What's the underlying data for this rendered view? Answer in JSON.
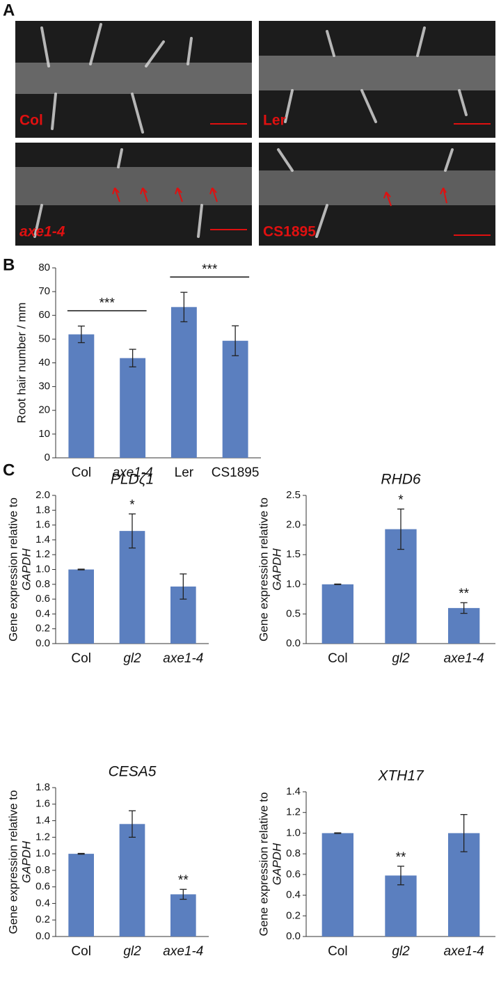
{
  "panel_labels": [
    "A",
    "B",
    "C"
  ],
  "micrographs": {
    "labels": [
      "Col",
      "Ler",
      "axe1-4",
      "CS1895"
    ]
  },
  "chart_data": [
    {
      "type": "bar",
      "ylabel": "Root hair number / mm",
      "categories": [
        "Col",
        "axe1-4",
        "Ler",
        "CS1895"
      ],
      "italic": [
        false,
        true,
        false,
        false
      ],
      "values": [
        52,
        42,
        63.5,
        49.3
      ],
      "errors": [
        3.5,
        3.7,
        6.2,
        6.3
      ],
      "color": "#5b7fbf",
      "ylim": [
        0,
        80
      ],
      "yticks": [
        0,
        10,
        20,
        30,
        40,
        50,
        60,
        70,
        80
      ],
      "brackets": [
        "***",
        "***"
      ]
    },
    {
      "type": "bar",
      "title": "PLDζ1",
      "ylabel": "Gene expression relative to",
      "ylabel_italic": "GAPDH",
      "categories": [
        "Col",
        "gl2",
        "axe1-4"
      ],
      "italic": [
        false,
        true,
        true
      ],
      "values": [
        1.0,
        1.52,
        0.77
      ],
      "errors": [
        0.005,
        0.23,
        0.17
      ],
      "stars": [
        null,
        "*",
        null
      ],
      "color": "#5b7fbf",
      "ylim": [
        0,
        2.0
      ],
      "yticks": [
        {
          "value": 0,
          "label": "0.0"
        },
        {
          "value": 0.2,
          "label": "0.2"
        },
        {
          "value": 0.4,
          "label": "0.4"
        },
        {
          "value": 0.6,
          "label": "0.6"
        },
        {
          "value": 0.8,
          "label": "0.8"
        },
        {
          "value": 1.0,
          "label": "1.0"
        },
        {
          "value": 1.2,
          "label": "1.2"
        },
        {
          "value": 1.4,
          "label": "1.4"
        },
        {
          "value": 1.6,
          "label": "1.6"
        },
        {
          "value": 1.8,
          "label": "1.8"
        },
        {
          "value": 2.0,
          "label": "2.0"
        }
      ]
    },
    {
      "type": "bar",
      "title": "RHD6",
      "ylabel": "Gene expression relative to",
      "ylabel_italic": "GAPDH",
      "categories": [
        "Col",
        "gl2",
        "axe1-4"
      ],
      "italic": [
        false,
        true,
        true
      ],
      "values": [
        1.0,
        1.93,
        0.6
      ],
      "errors": [
        0.005,
        0.34,
        0.09
      ],
      "stars": [
        null,
        "*",
        "**"
      ],
      "color": "#5b7fbf",
      "ylim": [
        0,
        2.5
      ],
      "yticks": [
        {
          "value": 0,
          "label": "0.0"
        },
        0.5,
        {
          "value": 1.0,
          "label": "1.0"
        },
        1.5,
        {
          "value": 2.0,
          "label": "2.0"
        },
        2.5
      ]
    },
    {
      "type": "bar",
      "title": "CESA5",
      "ylabel": "Gene expression relative to",
      "ylabel_italic": "GAPDH",
      "categories": [
        "Col",
        "gl2",
        "axe1-4"
      ],
      "italic": [
        false,
        true,
        true
      ],
      "values": [
        1.0,
        1.36,
        0.51
      ],
      "errors": [
        0.005,
        0.16,
        0.06
      ],
      "stars": [
        null,
        null,
        "**"
      ],
      "color": "#5b7fbf",
      "ylim": [
        0,
        1.8
      ],
      "yticks": [
        {
          "value": 0,
          "label": "0.0"
        },
        0.2,
        0.4,
        0.6,
        0.8,
        {
          "value": 1.0,
          "label": "1.0"
        },
        1.2,
        1.4,
        1.6,
        1.8
      ]
    },
    {
      "type": "bar",
      "title": "XTH17",
      "ylabel": "Gene expression relative to",
      "ylabel_italic": "GAPDH",
      "categories": [
        "Col",
        "gl2",
        "axe1-4"
      ],
      "italic": [
        false,
        true,
        true
      ],
      "values": [
        1.0,
        0.59,
        1.0
      ],
      "errors": [
        0.003,
        0.09,
        0.18
      ],
      "stars": [
        null,
        "**",
        null
      ],
      "color": "#5b7fbf",
      "ylim": [
        0,
        1.4
      ],
      "yticks": [
        {
          "value": 0,
          "label": "0.0"
        },
        0.2,
        0.4,
        0.6,
        0.8,
        {
          "value": 1.0,
          "label": "1.0"
        },
        1.2,
        1.4
      ]
    }
  ]
}
